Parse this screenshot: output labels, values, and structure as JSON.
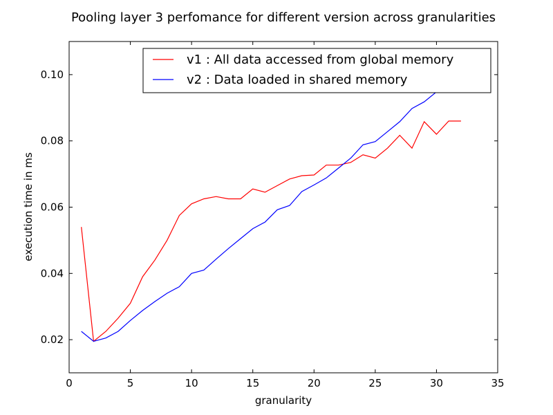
{
  "chart_data": {
    "type": "line",
    "title": "Pooling layer 3 perfomance for different version across granularities",
    "xlabel": "granularity",
    "ylabel": "execution time in ms",
    "xlim": [
      0,
      35
    ],
    "ylim": [
      0.01,
      0.11
    ],
    "xticks": [
      0,
      5,
      10,
      15,
      20,
      25,
      30,
      35
    ],
    "yticks": [
      0.02,
      0.04,
      0.06,
      0.08,
      0.1
    ],
    "xtick_labels": [
      "0",
      "5",
      "10",
      "15",
      "20",
      "25",
      "30",
      "35"
    ],
    "ytick_labels": [
      "0.02",
      "0.04",
      "0.06",
      "0.08",
      "0.10"
    ],
    "grid": false,
    "legend_position": "top-right",
    "series": [
      {
        "name": "v1 : All data accessed from global memory",
        "color": "#ff0000",
        "x": [
          1,
          2,
          3,
          4,
          5,
          6,
          7,
          8,
          9,
          10,
          11,
          12,
          13,
          14,
          15,
          16,
          17,
          18,
          19,
          20,
          21,
          22,
          23,
          24,
          25,
          26,
          27,
          28,
          29,
          30,
          31,
          32
        ],
        "values": [
          0.054,
          0.0195,
          0.0225,
          0.0265,
          0.031,
          0.039,
          0.044,
          0.05,
          0.0575,
          0.061,
          0.0625,
          0.0632,
          0.0625,
          0.0625,
          0.0655,
          0.0645,
          0.0665,
          0.0685,
          0.0695,
          0.0697,
          0.0727,
          0.0727,
          0.0735,
          0.0758,
          0.0748,
          0.0778,
          0.0817,
          0.0778,
          0.0858,
          0.082,
          0.086,
          0.086
        ]
      },
      {
        "name": "v2 : Data loaded in shared memory",
        "color": "#0000ff",
        "x": [
          1,
          2,
          3,
          4,
          5,
          6,
          7,
          8,
          9,
          10,
          11,
          12,
          13,
          14,
          15,
          16,
          17,
          18,
          19,
          20,
          21,
          22,
          23,
          24,
          25,
          26,
          27,
          28,
          29,
          30,
          31,
          32
        ],
        "values": [
          0.0225,
          0.0195,
          0.0205,
          0.0225,
          0.0258,
          0.0288,
          0.0315,
          0.034,
          0.036,
          0.04,
          0.041,
          0.0443,
          0.0475,
          0.0505,
          0.0535,
          0.0555,
          0.0592,
          0.0605,
          0.0647,
          0.0667,
          0.0688,
          0.0718,
          0.0748,
          0.0788,
          0.0798,
          0.0828,
          0.0858,
          0.0898,
          0.0918,
          0.0948,
          0.1,
          0.105
        ]
      }
    ]
  }
}
